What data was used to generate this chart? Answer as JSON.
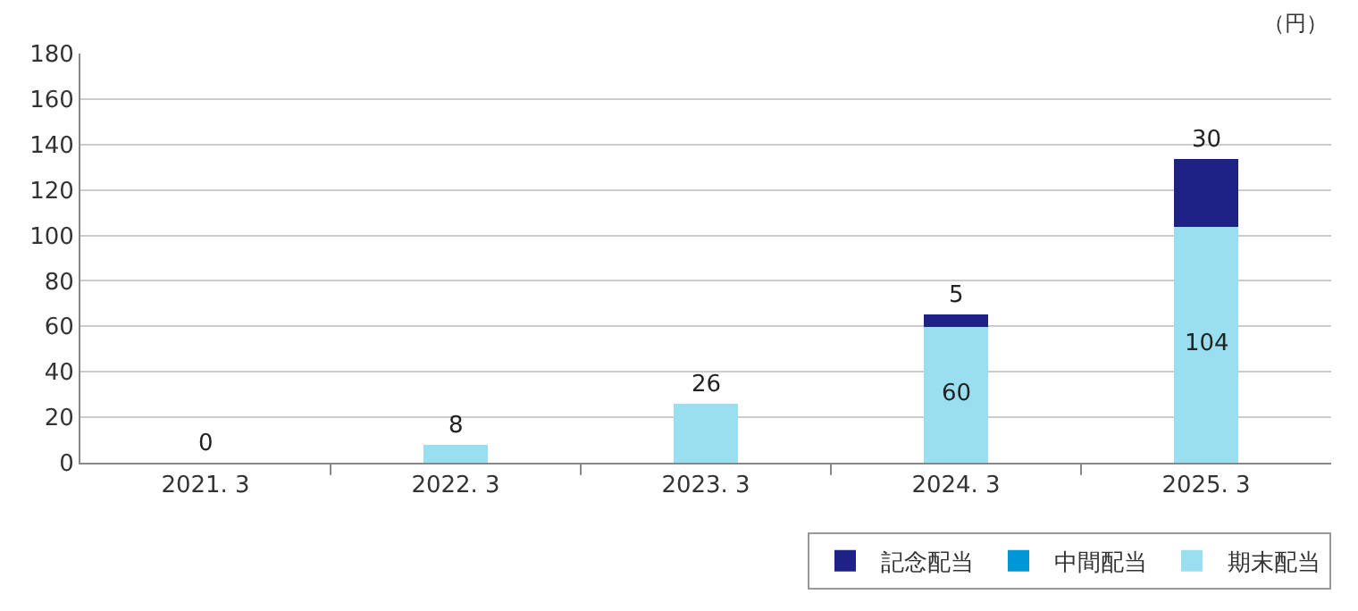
{
  "chart_data": {
    "type": "bar",
    "stacked": true,
    "categories": [
      "2021. 3",
      "2022. 3",
      "2023. 3",
      "2024. 3",
      "2025. 3"
    ],
    "series": [
      {
        "name": "期末配当",
        "color": "#99dff0",
        "values": [
          0,
          8,
          26,
          60,
          104
        ],
        "value_labels": [
          "0",
          "8",
          "26",
          "60",
          "104"
        ]
      },
      {
        "name": "中間配当",
        "color": "#0097d6",
        "values": [
          0,
          0,
          0,
          0,
          0
        ],
        "value_labels": [
          null,
          null,
          null,
          null,
          null
        ]
      },
      {
        "name": "記念配当",
        "color": "#1e2185",
        "values": [
          0,
          0,
          0,
          5,
          30
        ],
        "value_labels": [
          null,
          null,
          null,
          "5",
          "30"
        ]
      }
    ],
    "ylim": [
      0,
      180
    ],
    "yticks": [
      0,
      20,
      40,
      60,
      80,
      100,
      120,
      140,
      160,
      180
    ],
    "grid": "y",
    "legend": "bottom right",
    "annotations": [
      "（円）"
    ]
  }
}
